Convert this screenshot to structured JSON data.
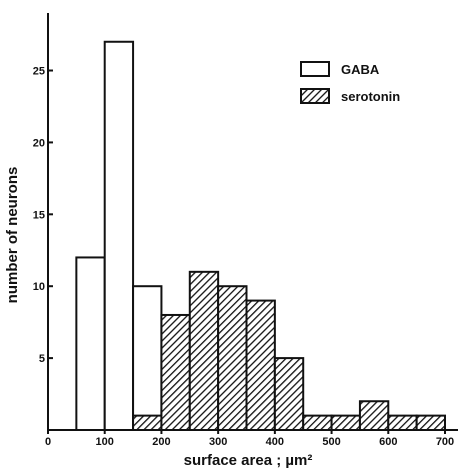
{
  "chart_data": {
    "type": "bar",
    "xlabel": "surface area ; µm²",
    "ylabel": "number of neurons",
    "xlim": [
      0,
      700
    ],
    "ylim": [
      0,
      29
    ],
    "bin_width": 50,
    "x_ticks": [
      0,
      100,
      200,
      300,
      400,
      500,
      600,
      700
    ],
    "y_ticks": [
      5,
      10,
      15,
      20,
      25
    ],
    "x_tick_labels": [
      "0",
      "100",
      "200",
      "300",
      "400",
      "500",
      "600",
      "700"
    ],
    "y_tick_labels": [
      "5",
      "10",
      "15",
      "20",
      "25"
    ],
    "legend_position": "top-right",
    "series": [
      {
        "name": "GABA",
        "fill": "open",
        "bins": [
          {
            "start": 50,
            "end": 100,
            "value": 12
          },
          {
            "start": 100,
            "end": 150,
            "value": 27
          },
          {
            "start": 150,
            "end": 200,
            "value": 10
          },
          {
            "start": 200,
            "end": 250,
            "value": 1
          }
        ]
      },
      {
        "name": "serotonin",
        "fill": "hatched",
        "bins": [
          {
            "start": 150,
            "end": 200,
            "value": 1
          },
          {
            "start": 200,
            "end": 250,
            "value": 8
          },
          {
            "start": 250,
            "end": 300,
            "value": 11
          },
          {
            "start": 300,
            "end": 350,
            "value": 10
          },
          {
            "start": 350,
            "end": 400,
            "value": 9
          },
          {
            "start": 400,
            "end": 450,
            "value": 5
          },
          {
            "start": 450,
            "end": 500,
            "value": 1
          },
          {
            "start": 500,
            "end": 550,
            "value": 1
          },
          {
            "start": 550,
            "end": 600,
            "value": 2
          },
          {
            "start": 600,
            "end": 650,
            "value": 1
          },
          {
            "start": 650,
            "end": 700,
            "value": 1
          }
        ]
      }
    ],
    "colors": {
      "ink": "#111111",
      "background": "#ffffff"
    }
  }
}
